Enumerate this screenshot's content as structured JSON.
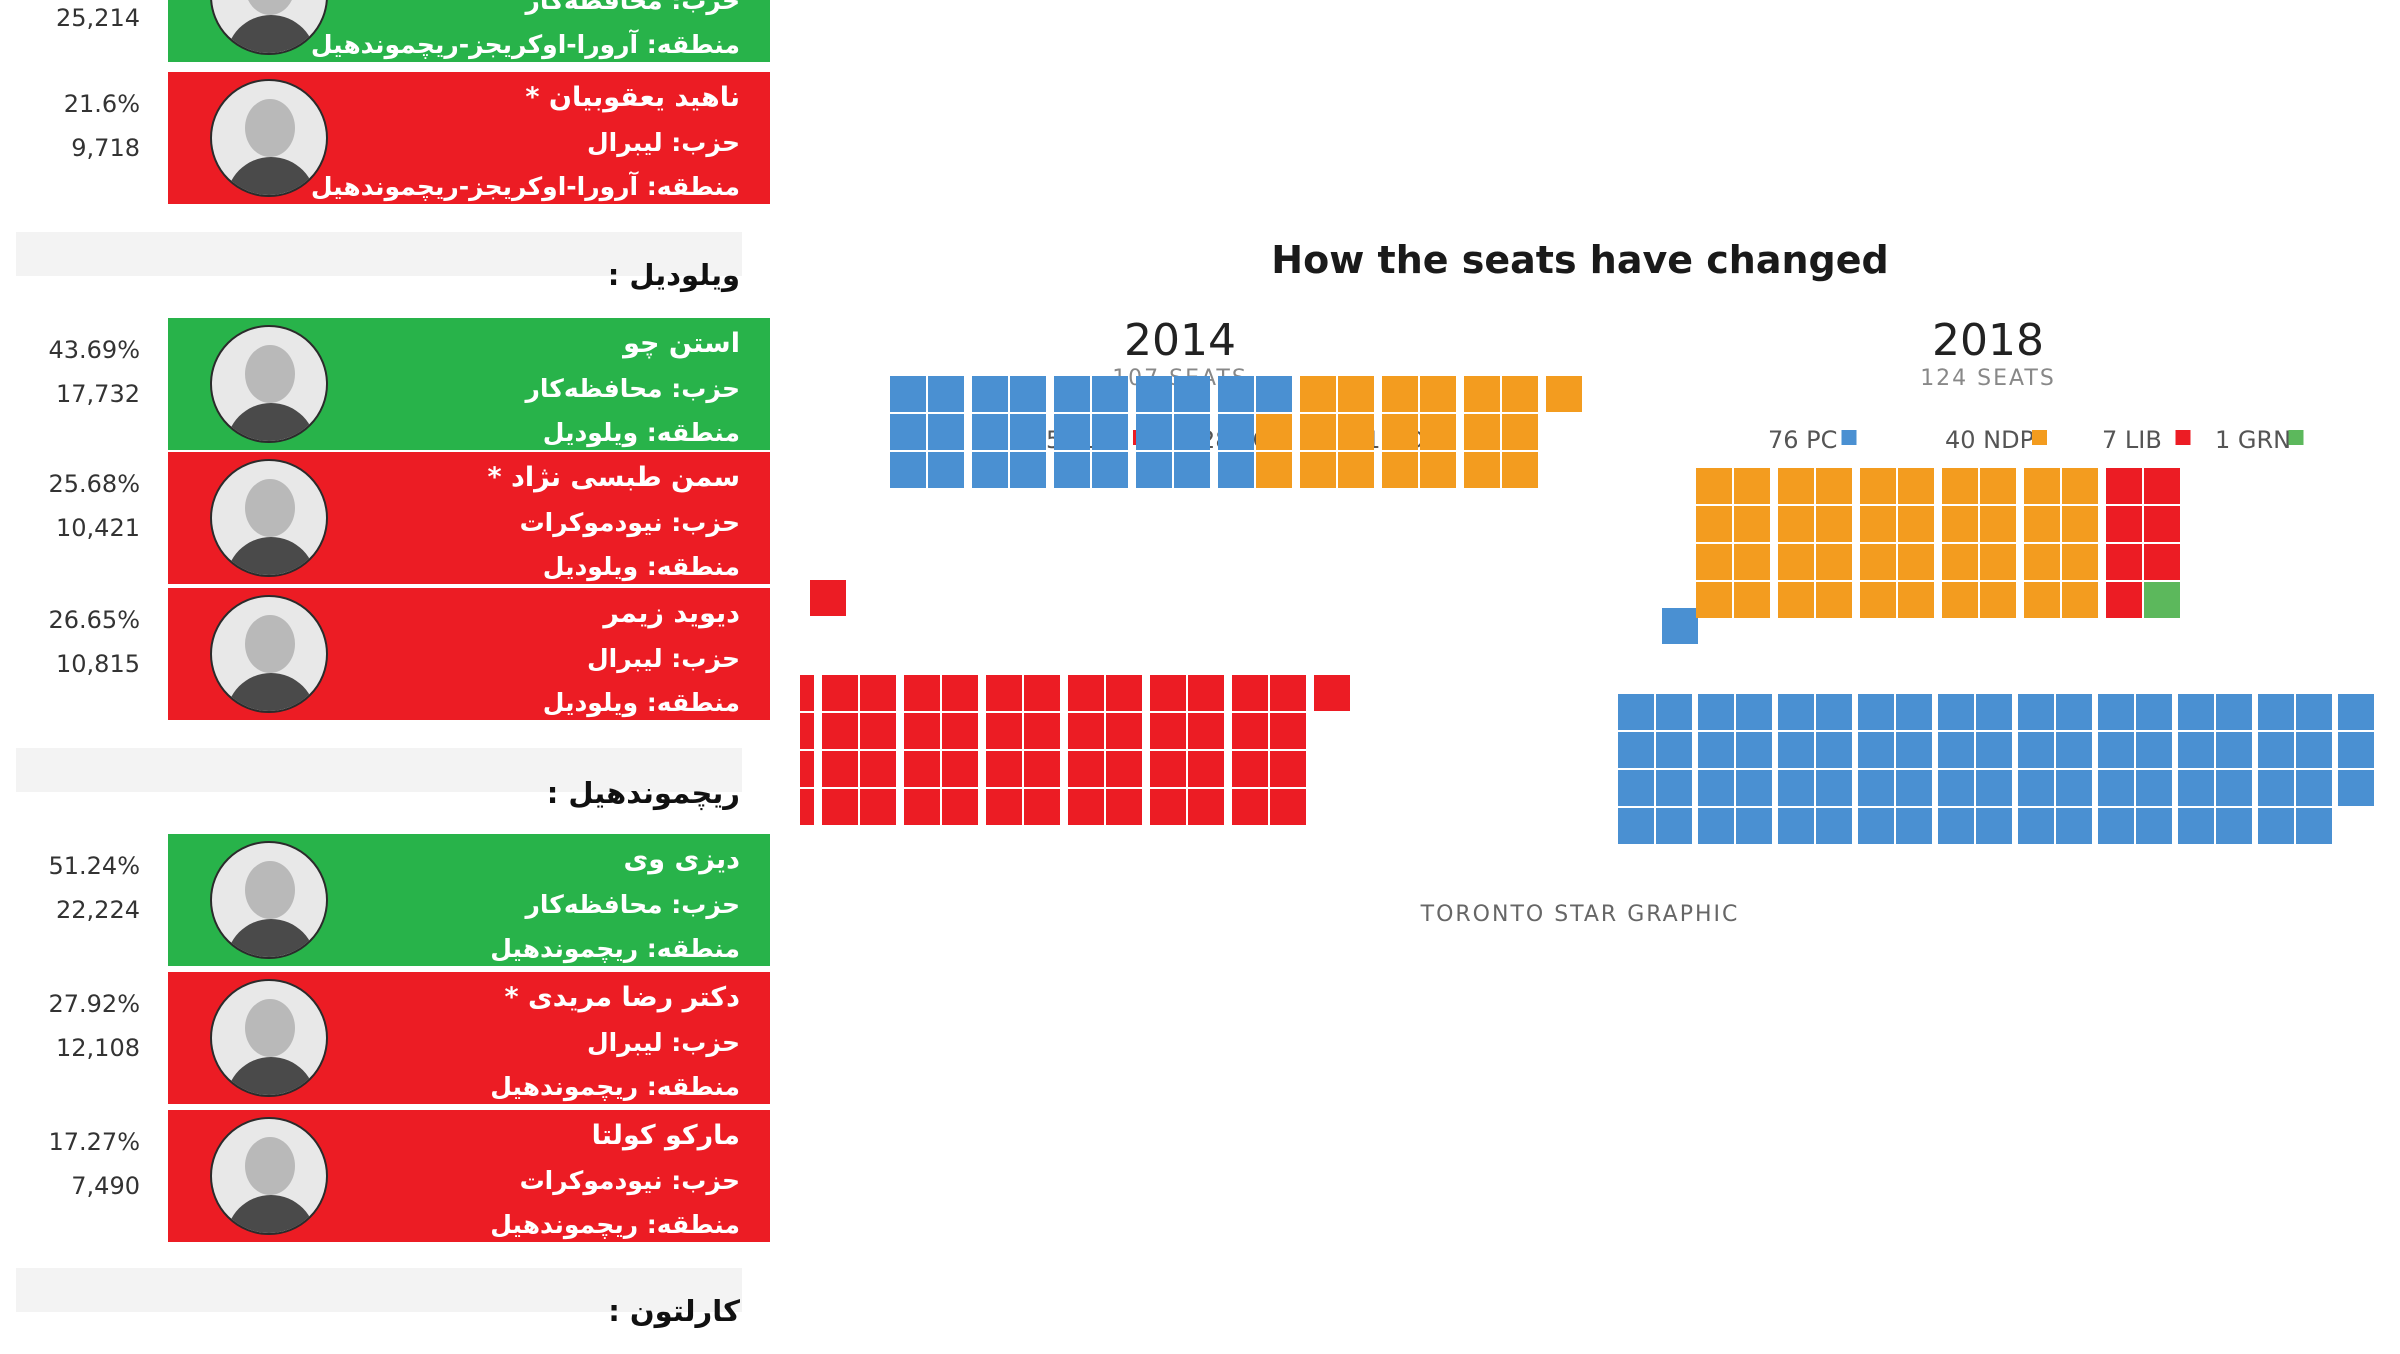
{
  "results": {
    "top_partial": {
      "votes": "25,214",
      "name": "حزب: محافظه‌کار",
      "district": "منطقه: آرورا-اوکریجز-ریچموندهیل"
    },
    "groups": [
      {
        "district_header": "",
        "candidates": [
          {
            "percent": "21.6%",
            "votes": "9,718",
            "name": "ناهید یعقوبیان *",
            "party": "حزب: لیبرال",
            "district": "منطقه: آرورا-اوکریجز-ریچموندهیل",
            "winner": false
          }
        ]
      },
      {
        "district_header": "ویلودیل :",
        "candidates": [
          {
            "percent": "43.69%",
            "votes": "17,732",
            "name": "استن چو",
            "party": "حزب: محافظه‌کار",
            "district": "منطقه: ویلودیل",
            "winner": true
          },
          {
            "percent": "25.68%",
            "votes": "10,421",
            "name": "سمن طبسی نژاد *",
            "party": "حزب: نیودموکرات",
            "district": "منطقه: ویلودیل",
            "winner": false
          },
          {
            "percent": "26.65%",
            "votes": "10,815",
            "name": "دیوید زیمر",
            "party": "حزب: لیبرال",
            "district": "منطقه: ویلودیل",
            "winner": false
          }
        ]
      },
      {
        "district_header": "ریچموندهیل :",
        "candidates": [
          {
            "percent": "51.24%",
            "votes": "22,224",
            "name": "دیزی وی",
            "party": "حزب: محافظه‌کار",
            "district": "منطقه: ریچموندهیل",
            "winner": true
          },
          {
            "percent": "27.92%",
            "votes": "12,108",
            "name": "دکتر رضا مریدی *",
            "party": "حزب: لیبرال",
            "district": "منطقه: ریچموندهیل",
            "winner": false
          },
          {
            "percent": "17.27%",
            "votes": "7,490",
            "name": "مارکو کولتا",
            "party": "حزب: نیودموکرات",
            "district": "منطقه: ریچموندهیل",
            "winner": false
          }
        ]
      },
      {
        "district_header": "کارلتون :",
        "candidates": []
      }
    ]
  },
  "colors": {
    "LIB": "#ec1c24",
    "PC": "#4a90d2",
    "NDP": "#f39c1f",
    "GRN": "#5cb85c",
    "win_bg": "#28b34a",
    "lose_bg": "#ec1c24"
  },
  "chart_data": {
    "type": "waffle",
    "title": "How the seats have changed",
    "charts": [
      {
        "year": "2014",
        "subtitle": "107 SEATS",
        "total": 107,
        "legend": [
          {
            "label": "58 LIB",
            "party": "LIB",
            "seats": 58
          },
          {
            "label": "28 PC",
            "party": "PC",
            "seats": 28
          },
          {
            "label": "21 NDP",
            "party": "NDP",
            "seats": 21
          }
        ]
      },
      {
        "year": "2018",
        "subtitle": "124 SEATS",
        "total": 124,
        "legend": [
          {
            "label": "76 PC",
            "party": "PC",
            "seats": 76
          },
          {
            "label": "40 NDP",
            "party": "NDP",
            "seats": 40
          },
          {
            "label": "7 LIB",
            "party": "LIB",
            "seats": 7
          },
          {
            "label": "1 GRN",
            "party": "GRN",
            "seats": 1
          }
        ]
      }
    ],
    "source": "TORONTO STAR GRAPHIC"
  }
}
